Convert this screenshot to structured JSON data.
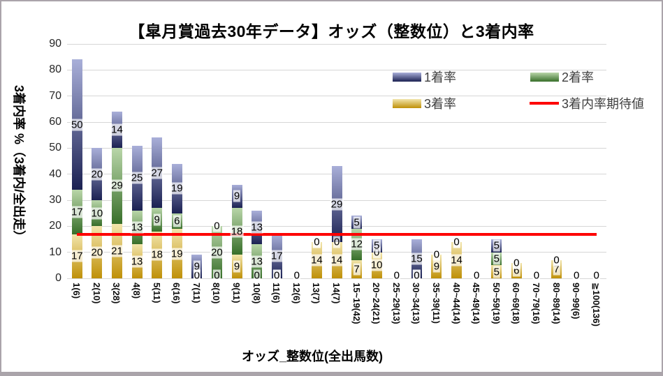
{
  "chart_data": {
    "type": "bar",
    "stacked": true,
    "title": "【皐月賞過去30年データ】オッズ（整数位）と3着内率",
    "xlabel": "オッズ_整数位(全出馬数)",
    "ylabel": "3着内率 %（3着内/全出走）",
    "ylim": [
      0,
      90
    ],
    "ytick_interval": 10,
    "grid": true,
    "legend_position": "top-right",
    "show_data_labels": true,
    "categories": [
      "1(6)",
      "2(10)",
      "3(28)",
      "4(8)",
      "5(11)",
      "6(16)",
      "7(11)",
      "8(10)",
      "9(11)",
      "10(8)",
      "11(6)",
      "12(6)",
      "13(7)",
      "14(7)",
      "15~19(42)",
      "20~24(21)",
      "25~29(13)",
      "30~34(13)",
      "35~39(11)",
      "40~44(14)",
      "45~49(14)",
      "50~59(19)",
      "60~69(18)",
      "70~79(16)",
      "80~89(14)",
      "90~99(6)",
      "≧100(136)"
    ],
    "series": [
      {
        "name": "1着率",
        "color_top": "#a9afd9",
        "color_bottom": "#1b2152",
        "values": [
          50,
          20,
          14,
          25,
          27,
          19,
          9,
          0,
          9,
          13,
          17,
          0,
          0,
          29,
          5,
          5,
          0,
          15,
          0,
          0,
          0,
          5,
          0,
          0,
          0,
          0,
          0
        ]
      },
      {
        "name": "2着率",
        "color_top": "#b9d6a9",
        "color_bottom": "#386f2a",
        "values": [
          17,
          10,
          29,
          13,
          9,
          6,
          0,
          20,
          18,
          13,
          0,
          0,
          0,
          0,
          12,
          0,
          0,
          0,
          0,
          0,
          0,
          5,
          0,
          0,
          0,
          0,
          0
        ]
      },
      {
        "name": "3着率",
        "color_top": "#f2e5ac",
        "color_bottom": "#bf9007",
        "values": [
          17,
          20,
          21,
          13,
          18,
          19,
          0,
          0,
          9,
          0,
          0,
          0,
          14,
          14,
          7,
          10,
          0,
          0,
          9,
          14,
          0,
          5,
          6,
          0,
          7,
          0,
          0
        ]
      }
    ],
    "stack_order_bottom_to_top": [
      "3着率",
      "2着率",
      "1着率"
    ],
    "reference_line": {
      "name": "3着内率期待値",
      "value": 17,
      "color": "#fe0000"
    }
  }
}
